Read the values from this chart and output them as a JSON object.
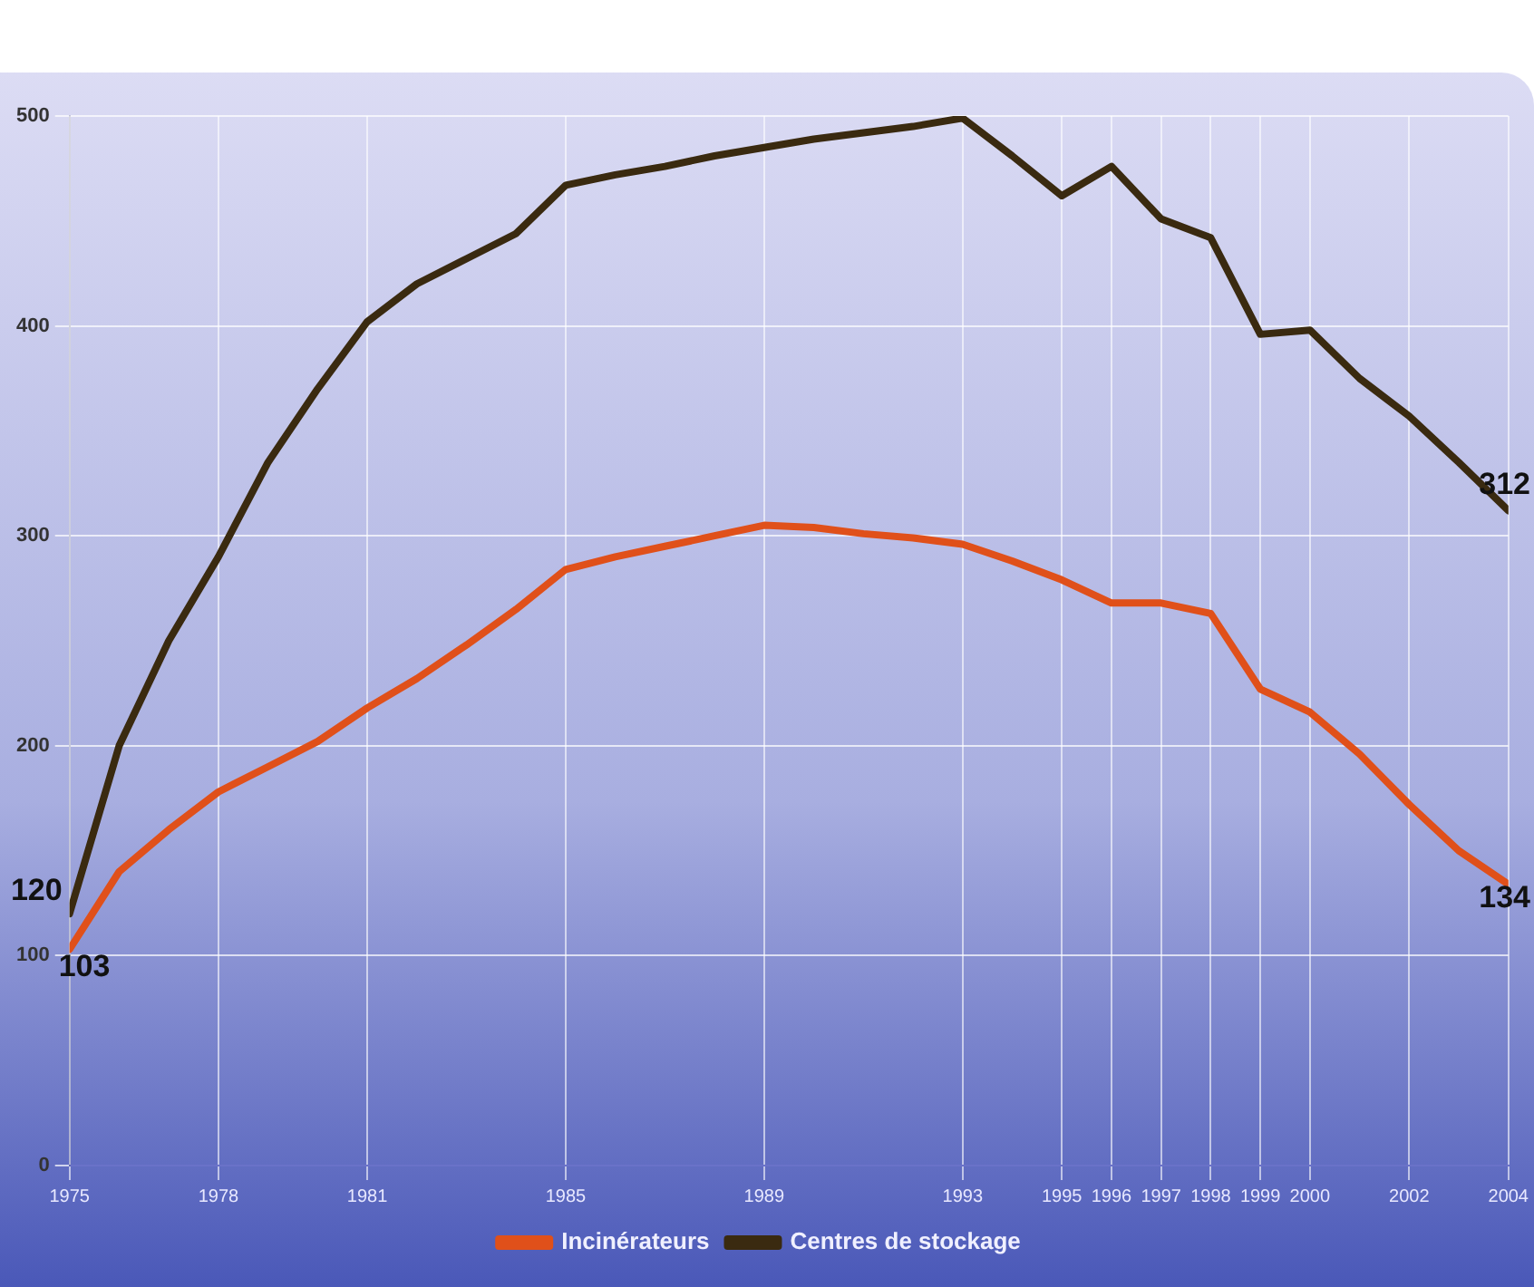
{
  "chart_data": {
    "type": "line",
    "x": [
      1975,
      1976,
      1977,
      1978,
      1979,
      1980,
      1981,
      1982,
      1983,
      1984,
      1985,
      1986,
      1987,
      1988,
      1989,
      1990,
      1991,
      1992,
      1993,
      1994,
      1995,
      1996,
      1997,
      1998,
      1999,
      2000,
      2001,
      2002,
      2003,
      2004
    ],
    "series": [
      {
        "name": "Incinérateurs",
        "color": "#e0501a",
        "values": [
          103,
          140,
          160,
          178,
          190,
          202,
          218,
          232,
          248,
          265,
          284,
          290,
          295,
          300,
          305,
          304,
          301,
          299,
          296,
          288,
          279,
          268,
          268,
          263,
          227,
          216,
          196,
          172,
          150,
          134
        ],
        "value_labels": [
          "103",
          null,
          null,
          null,
          null,
          null,
          null,
          null,
          null,
          null,
          null,
          null,
          null,
          null,
          null,
          null,
          null,
          null,
          null,
          null,
          null,
          null,
          null,
          null,
          null,
          null,
          null,
          null,
          null,
          "134"
        ]
      },
      {
        "name": "Centres de stockage",
        "color": "#3a2a10",
        "values": [
          120,
          200,
          250,
          290,
          335,
          370,
          402,
          420,
          432,
          444,
          467,
          472,
          476,
          481,
          485,
          489,
          492,
          495,
          499,
          481,
          462,
          476,
          451,
          442,
          396,
          398,
          375,
          357,
          335,
          312
        ],
        "value_labels": [
          "120",
          null,
          null,
          null,
          null,
          null,
          null,
          null,
          null,
          null,
          null,
          null,
          null,
          null,
          null,
          null,
          null,
          null,
          null,
          null,
          null,
          null,
          null,
          null,
          null,
          null,
          null,
          null,
          null,
          "312"
        ]
      }
    ],
    "xlim": [
      1975,
      2004
    ],
    "xticks": [
      1975,
      1978,
      1981,
      1985,
      1989,
      1993,
      1995,
      1996,
      1997,
      1998,
      1999,
      2000,
      2002,
      2004
    ],
    "ylim": [
      0,
      500
    ],
    "yticks": [
      0,
      100,
      200,
      300,
      400,
      500
    ],
    "grid": true,
    "legend": "bottom",
    "marker": "none",
    "line_style": "solid"
  }
}
